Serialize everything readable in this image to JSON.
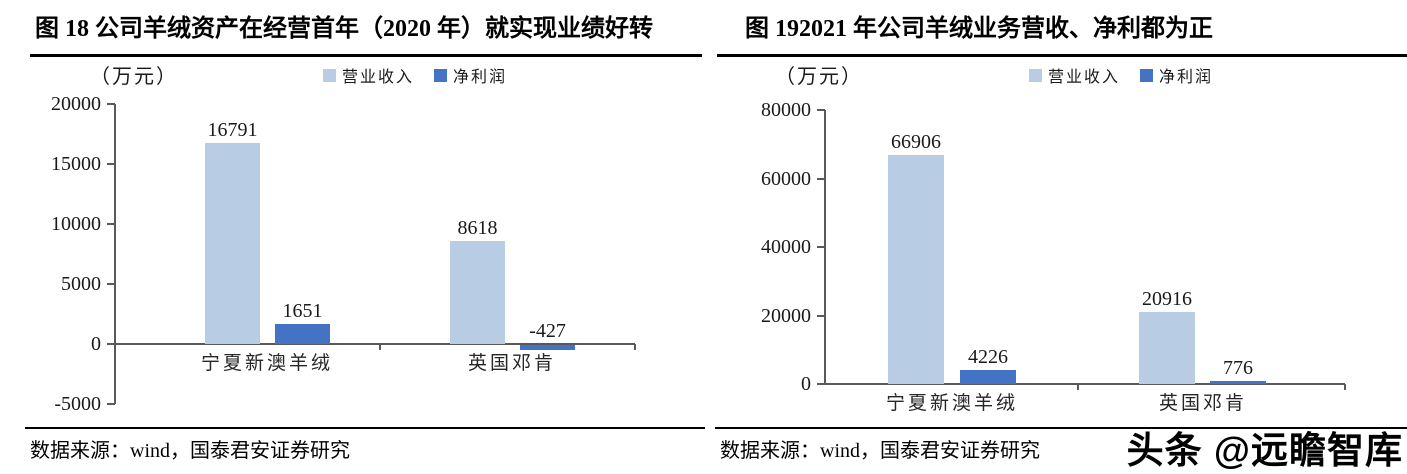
{
  "header": {
    "left_title": "图 18 公司羊绒资产在经营首年（2020 年）就实现业绩好转",
    "right_title": "图 192021 年公司羊绒业务营收、净利都为正"
  },
  "footer": {
    "source_left": "数据来源：wind，国泰君安证券研究",
    "source_right": "数据来源：wind，国泰君安证券研究",
    "watermark": "头条 @远瞻智库"
  },
  "colors": {
    "revenue": "#b8cce4",
    "profit": "#4472c4",
    "axis": "#595959",
    "text": "#1a1a1a"
  },
  "chart_data": [
    {
      "type": "bar",
      "title": "公司羊绒资产在经营首年（2020 年）就实现业绩好转",
      "unit_label": "（万元）",
      "categories": [
        "宁夏新澳羊绒",
        "英国邓肯"
      ],
      "series": [
        {
          "name": "营业收入",
          "color": "#b8cce4",
          "values": [
            16791,
            8618
          ]
        },
        {
          "name": "净利润",
          "color": "#4472c4",
          "values": [
            1651,
            -427
          ]
        }
      ],
      "ylim": [
        -5000,
        20000
      ],
      "yticks": [
        20000,
        15000,
        10000,
        5000,
        0,
        -5000
      ],
      "ylabel": "（万元）",
      "legend_position": "top",
      "grid": false
    },
    {
      "type": "bar",
      "title": "2021 年公司羊绒业务营收、净利都为正",
      "unit_label": "（万元）",
      "categories": [
        "宁夏新澳羊绒",
        "英国邓肯"
      ],
      "series": [
        {
          "name": "营业收入",
          "color": "#b8cce4",
          "values": [
            66906,
            20916
          ]
        },
        {
          "name": "净利润",
          "color": "#4472c4",
          "values": [
            4226,
            776
          ]
        }
      ],
      "ylim": [
        0,
        80000
      ],
      "yticks": [
        80000,
        60000,
        40000,
        20000,
        0
      ],
      "ylabel": "（万元）",
      "legend_position": "top",
      "grid": false
    }
  ]
}
